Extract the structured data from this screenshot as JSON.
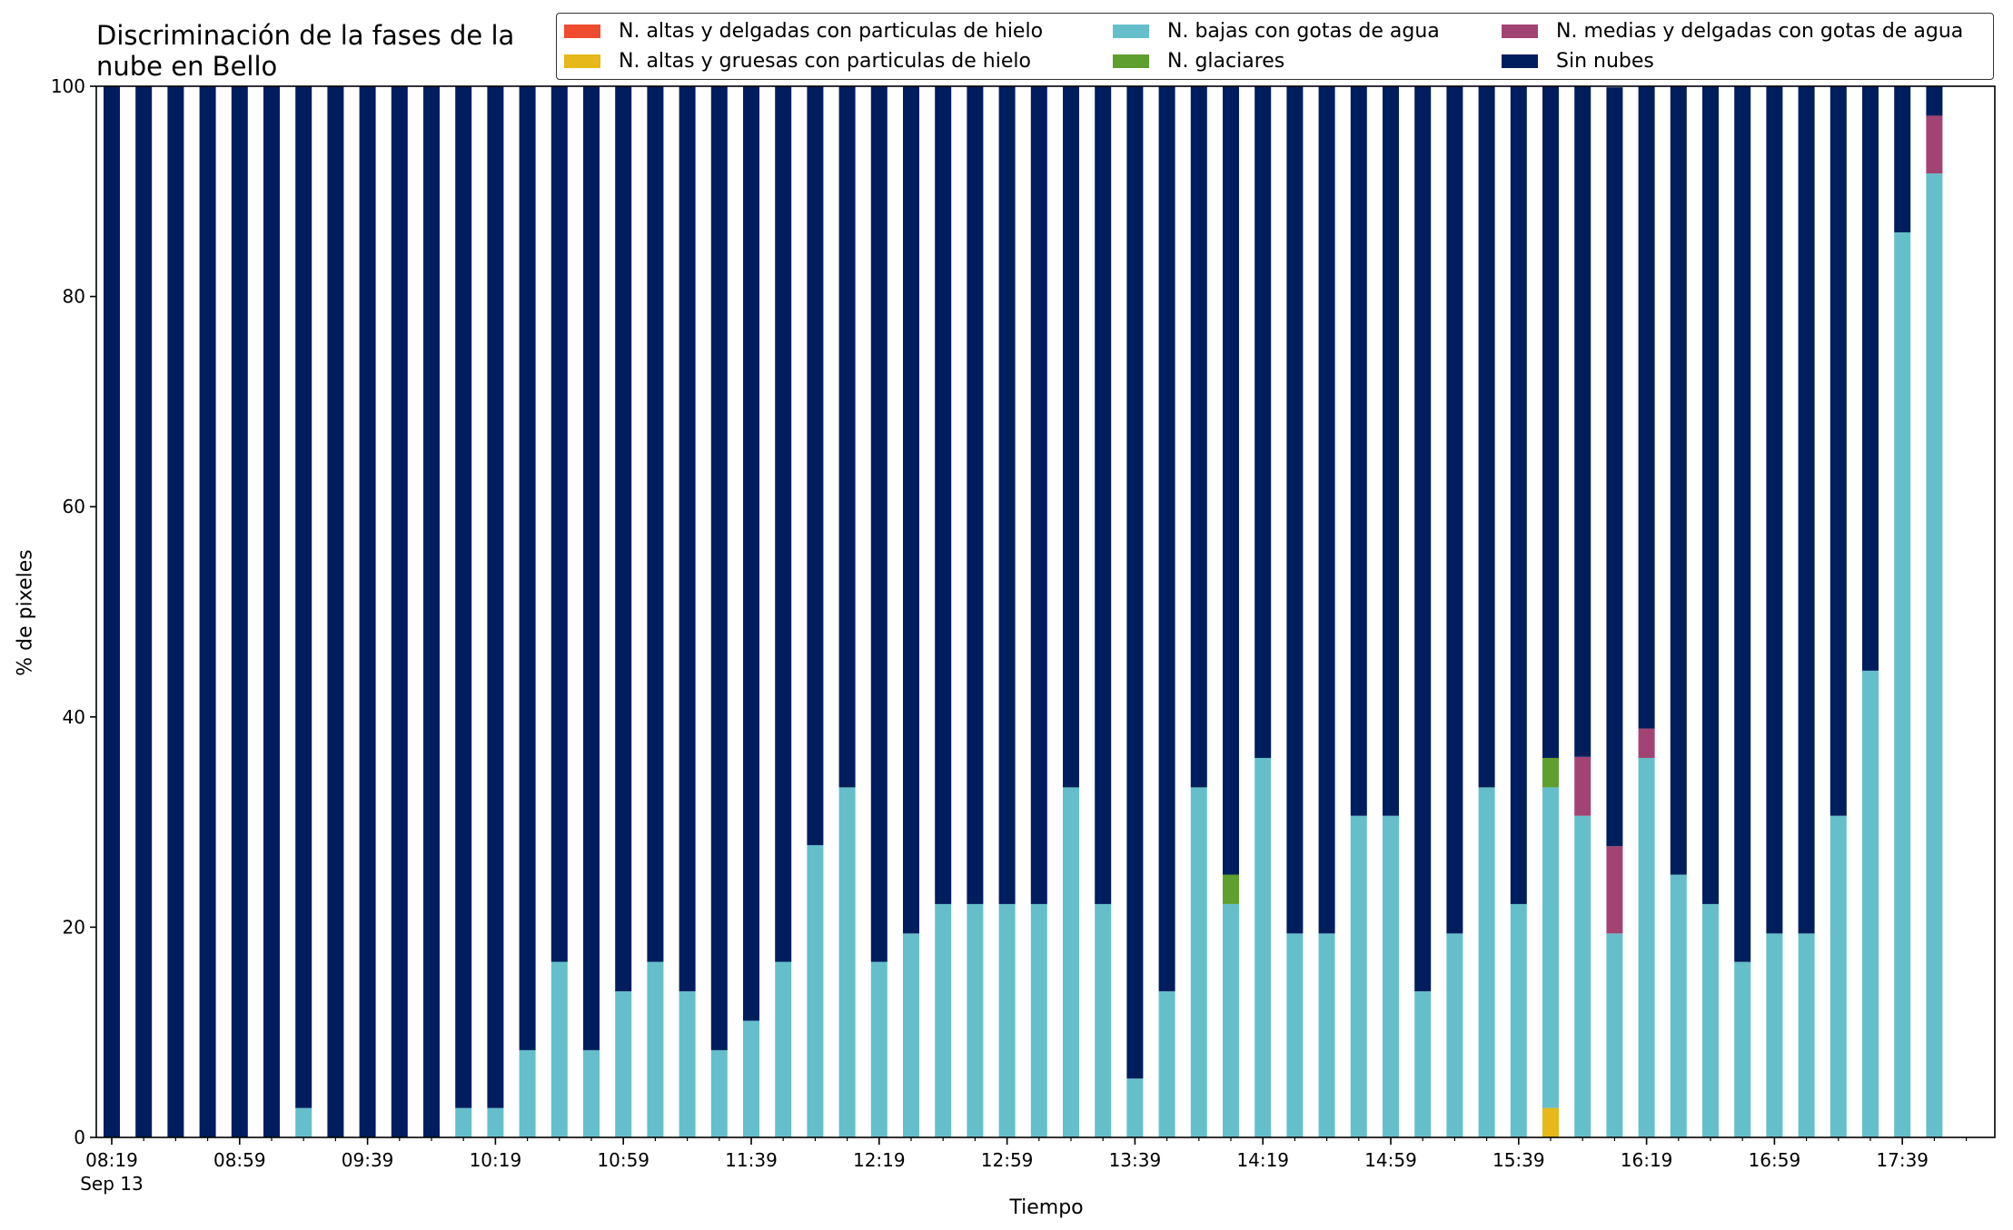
{
  "chart_data": {
    "type": "bar",
    "stacked": true,
    "title": "Discriminación de la fases de la\nnube en Bello",
    "xlabel": "Tiempo",
    "ylabel": "% de pixeles",
    "ylim": [
      0,
      100
    ],
    "yticks": [
      0,
      20,
      40,
      60,
      80,
      100
    ],
    "legend_position": "top-right",
    "legend_columns": 3,
    "x_tick_labels": [
      "08:19\nSep 13",
      "08:59",
      "09:39",
      "10:19",
      "10:59",
      "11:39",
      "12:19",
      "12:59",
      "13:39",
      "14:19",
      "14:59",
      "15:39",
      "16:19",
      "16:59",
      "17:39"
    ],
    "x_tick_positions": [
      0,
      4,
      8,
      12,
      16,
      20,
      24,
      28,
      32,
      36,
      40,
      44,
      48,
      52,
      56
    ],
    "num_minor_ticks": 59,
    "series": [
      {
        "name": "N. altas y delgadas con particulas de hielo",
        "color": "#ef4b2f",
        "values": [
          0,
          0,
          0,
          0,
          0,
          0,
          0,
          0,
          0,
          0,
          0,
          0,
          0,
          0,
          0,
          0,
          0,
          0,
          0,
          0,
          0,
          0,
          0,
          0,
          0,
          0,
          0,
          0,
          0,
          0,
          0,
          0,
          0,
          0,
          0,
          0,
          0,
          0,
          0,
          0,
          0,
          0,
          0,
          0,
          0,
          0,
          0,
          0,
          0,
          0,
          0,
          0,
          0,
          0,
          0,
          0,
          0,
          0
        ]
      },
      {
        "name": "N. altas y gruesas con particulas de hielo",
        "color": "#e6b819",
        "values": [
          0,
          0,
          0,
          0,
          0,
          0,
          0,
          0,
          0,
          0,
          0,
          0,
          0,
          0,
          0,
          0,
          0,
          0,
          0,
          0,
          0,
          0,
          0,
          0,
          0,
          0,
          0,
          0,
          0,
          0,
          0,
          0,
          0,
          0,
          0,
          0,
          0,
          0,
          0,
          0,
          0,
          0,
          0,
          0,
          0,
          2.8,
          0,
          0,
          0,
          0,
          0,
          0,
          0,
          0,
          0,
          0,
          0,
          0
        ]
      },
      {
        "name": "N. bajas con gotas de agua",
        "color": "#65bfcb",
        "values": [
          0,
          0,
          0,
          0,
          0,
          0,
          2.8,
          0,
          0,
          0,
          0,
          2.8,
          2.8,
          8.3,
          16.7,
          8.3,
          13.9,
          16.7,
          13.9,
          8.3,
          11.1,
          16.7,
          27.8,
          33.3,
          16.7,
          19.4,
          22.2,
          22.2,
          22.2,
          22.2,
          33.3,
          22.2,
          5.6,
          13.9,
          33.3,
          22.2,
          36.1,
          19.4,
          19.4,
          30.6,
          30.6,
          13.9,
          19.4,
          33.3,
          22.2,
          30.5,
          30.6,
          19.4,
          36.1,
          25.0,
          22.2,
          16.7,
          19.4,
          19.4,
          30.6,
          44.4,
          86.1,
          91.7
        ]
      },
      {
        "name": "N. glaciares",
        "color": "#5e9f2d",
        "values": [
          0,
          0,
          0,
          0,
          0,
          0,
          0,
          0,
          0,
          0,
          0,
          0,
          0,
          0,
          0,
          0,
          0,
          0,
          0,
          0,
          0,
          0,
          0,
          0,
          0,
          0,
          0,
          0,
          0,
          0,
          0,
          0,
          0,
          0,
          0,
          2.8,
          0,
          0,
          0,
          0,
          0,
          0,
          0,
          0,
          0,
          2.8,
          0,
          0,
          0,
          0,
          0,
          0,
          0,
          0,
          0,
          0,
          0,
          0
        ]
      },
      {
        "name": "N. medias y delgadas con gotas de agua",
        "color": "#a24473",
        "values": [
          0,
          0,
          0,
          0,
          0,
          0,
          0,
          0,
          0,
          0,
          0,
          0,
          0,
          0,
          0,
          0,
          0,
          0,
          0,
          0,
          0,
          0,
          0,
          0,
          0,
          0,
          0,
          0,
          0,
          0,
          0,
          0,
          0,
          0,
          0,
          0,
          0,
          0,
          0,
          0,
          0,
          0,
          0,
          0,
          0,
          0,
          5.6,
          8.3,
          2.8,
          0,
          0,
          0,
          0,
          0,
          0,
          0,
          0,
          5.5
        ]
      },
      {
        "name": "Sin nubes",
        "color": "#001e5d",
        "values": [
          100,
          100,
          100,
          100,
          100,
          100,
          97.2,
          100,
          100,
          100,
          100,
          97.2,
          97.2,
          91.7,
          83.3,
          91.7,
          86.1,
          83.3,
          86.1,
          91.7,
          88.9,
          83.3,
          72.2,
          66.7,
          83.3,
          80.6,
          77.8,
          77.8,
          77.8,
          77.8,
          66.7,
          77.8,
          94.4,
          86.1,
          66.7,
          75.0,
          63.9,
          80.6,
          80.6,
          69.4,
          69.4,
          86.1,
          80.6,
          66.7,
          77.8,
          63.9,
          63.8,
          72.2,
          61.1,
          75.0,
          77.8,
          83.3,
          80.6,
          80.6,
          69.4,
          55.6,
          13.9,
          2.8
        ]
      }
    ]
  }
}
